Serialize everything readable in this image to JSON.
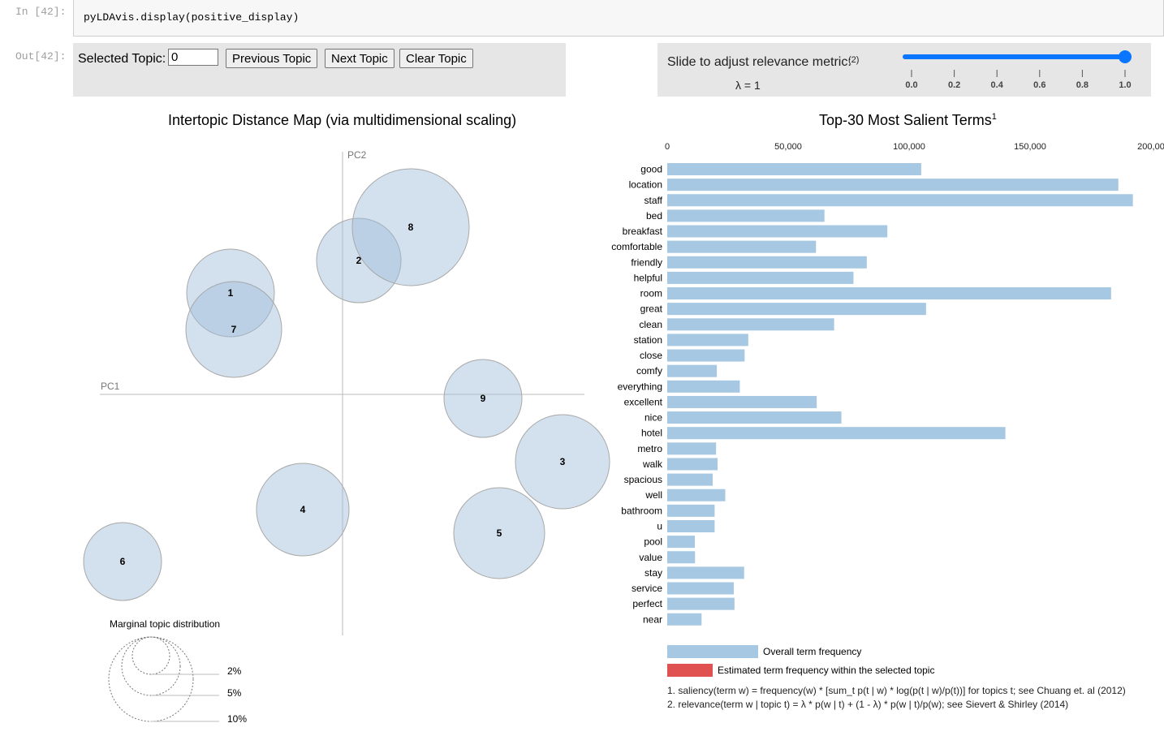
{
  "notebook": {
    "in_prompt": "In [42]:",
    "out_prompt": "Out[42]:",
    "code": "pyLDAvis.display(positive_display)"
  },
  "controls": {
    "selected_topic_label": "Selected Topic:",
    "selected_topic_value": "0",
    "previous_button": "Previous Topic",
    "next_button": "Next Topic",
    "clear_button": "Clear Topic"
  },
  "lambda": {
    "label": "Slide to adjust relevance metric:",
    "label_note": "(2)",
    "value_text": "λ = 1",
    "value": 1.0,
    "ticks": [
      "0.0",
      "0.2",
      "0.4",
      "0.6",
      "0.8",
      "1.0"
    ],
    "accent_color": "#0a75ff"
  },
  "map": {
    "title": "Intertopic Distance Map (via multidimensional scaling)",
    "pc1_label": "PC1",
    "pc2_label": "PC2",
    "marginal_title": "Marginal topic distribution",
    "marginal_ticks": [
      "2%",
      "5%",
      "10%"
    ],
    "topics": [
      "1",
      "2",
      "3",
      "4",
      "5",
      "6",
      "7",
      "8",
      "9"
    ],
    "circle_color": "#9ebcda"
  },
  "bars": {
    "title": "Top-30 Most Salient Terms",
    "title_note": "1",
    "bar_color": "#a6c8e2",
    "topic_color": "#e05252",
    "legend_overall": "Overall term frequency",
    "legend_topic": "Estimated term frequency within the selected topic",
    "footnote1": "1. saliency(term w) = frequency(w) * [sum_t p(t | w) * log(p(t | w)/p(t))] for topics t; see Chuang et. al (2012)",
    "footnote2": "2. relevance(term w | topic t) = λ * p(w | t) + (1 - λ) * p(w | t)/p(w); see Sievert & Shirley (2014)"
  },
  "chart_data": {
    "type": "bar",
    "orientation": "horizontal",
    "xlim": [
      0,
      200000
    ],
    "x_ticks": [
      "0",
      "50,000",
      "100,000",
      "150,000",
      "200,00"
    ],
    "categories": [
      "good",
      "location",
      "staff",
      "bed",
      "breakfast",
      "comfortable",
      "friendly",
      "helpful",
      "room",
      "great",
      "clean",
      "station",
      "close",
      "comfy",
      "everything",
      "excellent",
      "nice",
      "hotel",
      "metro",
      "walk",
      "spacious",
      "well",
      "bathroom",
      "u",
      "pool",
      "value",
      "stay",
      "service",
      "perfect",
      "near"
    ],
    "values": [
      105000,
      186500,
      192500,
      65000,
      91000,
      61500,
      82500,
      77000,
      183500,
      107000,
      69000,
      33500,
      32000,
      20500,
      30000,
      61800,
      72000,
      139800,
      20200,
      20800,
      18800,
      24000,
      19600,
      19600,
      11400,
      11500,
      31800,
      27500,
      27800,
      14200
    ]
  }
}
